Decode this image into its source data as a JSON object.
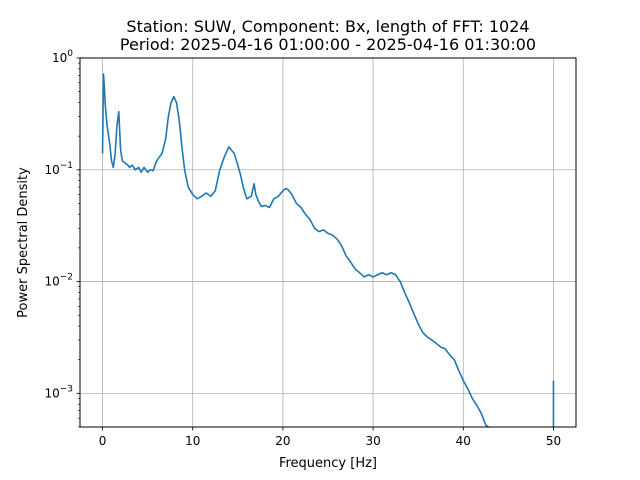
{
  "chart_data": {
    "type": "line",
    "title_line1": "Station: SUW, Component: Bx, length of FFT: 1024",
    "title_line2": "Period: 2025-04-16 01:00:00 - 2025-04-16 01:30:00",
    "xlabel": "Frequency [Hz]",
    "ylabel": "Power Spectral Density",
    "xlim": [
      -2.5,
      52.5
    ],
    "ylim": [
      0.0005,
      1.0
    ],
    "yscale": "log",
    "grid": true,
    "x_ticks": [
      {
        "value": 0,
        "label": "0"
      },
      {
        "value": 10,
        "label": "10"
      },
      {
        "value": 20,
        "label": "20"
      },
      {
        "value": 30,
        "label": "30"
      },
      {
        "value": 40,
        "label": "40"
      },
      {
        "value": 50,
        "label": "50"
      }
    ],
    "y_ticks": [
      {
        "value": 0.001,
        "base": "10",
        "exp": "−3"
      },
      {
        "value": 0.01,
        "base": "10",
        "exp": "−2"
      },
      {
        "value": 0.1,
        "base": "10",
        "exp": "−1"
      },
      {
        "value": 1.0,
        "base": "10",
        "exp": "0"
      }
    ],
    "series": [
      {
        "color": "#1f77b4",
        "segments": [
          {
            "x": [
              0.0,
              0.1,
              0.2,
              0.3,
              0.5,
              0.8,
              1.0,
              1.2,
              1.4,
              1.6,
              1.8,
              2.0,
              2.2,
              2.5,
              2.8,
              3.0,
              3.3,
              3.6,
              4.0,
              4.3,
              4.6,
              5.0,
              5.3,
              5.6,
              6.0,
              6.3,
              6.6,
              7.0,
              7.3,
              7.6,
              7.9,
              8.2,
              8.5,
              8.8,
              9.1,
              9.5,
              10.0,
              10.5,
              11.0,
              11.5,
              12.0,
              12.5,
              13.0,
              13.5,
              14.0,
              14.3,
              14.6,
              15.0,
              15.3,
              15.6,
              16.0,
              16.5,
              16.8,
              17.0,
              17.3,
              17.6,
              18.0,
              18.5,
              19.0,
              19.5,
              20.0,
              20.3,
              20.6,
              21.0,
              21.5,
              22.0,
              22.5,
              23.0,
              23.5,
              24.0,
              24.5,
              25.0,
              25.5,
              26.0,
              26.5,
              27.0,
              27.5,
              28.0,
              28.5,
              29.0,
              29.5,
              30.0,
              30.5,
              31.0,
              31.5,
              32.0,
              32.5,
              33.0,
              33.5,
              34.0,
              34.5,
              35.0,
              35.5,
              36.0,
              36.5,
              37.0,
              37.5,
              38.0,
              38.5,
              39.0,
              39.5,
              40.0,
              40.5,
              41.0,
              41.5,
              42.0,
              42.5,
              42.8
            ],
            "y": [
              0.14,
              0.72,
              0.55,
              0.38,
              0.25,
              0.17,
              0.12,
              0.105,
              0.14,
              0.25,
              0.33,
              0.15,
              0.12,
              0.115,
              0.11,
              0.105,
              0.11,
              0.1,
              0.105,
              0.095,
              0.105,
              0.095,
              0.1,
              0.098,
              0.12,
              0.13,
              0.14,
              0.19,
              0.3,
              0.4,
              0.45,
              0.4,
              0.28,
              0.16,
              0.1,
              0.07,
              0.06,
              0.055,
              0.058,
              0.062,
              0.058,
              0.065,
              0.1,
              0.13,
              0.16,
              0.15,
              0.14,
              0.11,
              0.09,
              0.07,
              0.055,
              0.058,
              0.075,
              0.06,
              0.052,
              0.047,
              0.048,
              0.046,
              0.055,
              0.058,
              0.065,
              0.068,
              0.066,
              0.06,
              0.05,
              0.046,
              0.04,
              0.036,
              0.03,
              0.028,
              0.029,
              0.027,
              0.026,
              0.024,
              0.021,
              0.017,
              0.015,
              0.013,
              0.012,
              0.011,
              0.0115,
              0.011,
              0.0115,
              0.012,
              0.0115,
              0.012,
              0.0115,
              0.01,
              0.008,
              0.0065,
              0.0052,
              0.0042,
              0.0035,
              0.0032,
              0.003,
              0.0028,
              0.0026,
              0.0025,
              0.0022,
              0.002,
              0.0016,
              0.0013,
              0.0011,
              0.0009,
              0.00078,
              0.00066,
              0.00052,
              0.0005
            ]
          },
          {
            "x": [
              50.0,
              50.0
            ],
            "y": [
              0.0005,
              0.0013
            ]
          }
        ]
      }
    ]
  }
}
